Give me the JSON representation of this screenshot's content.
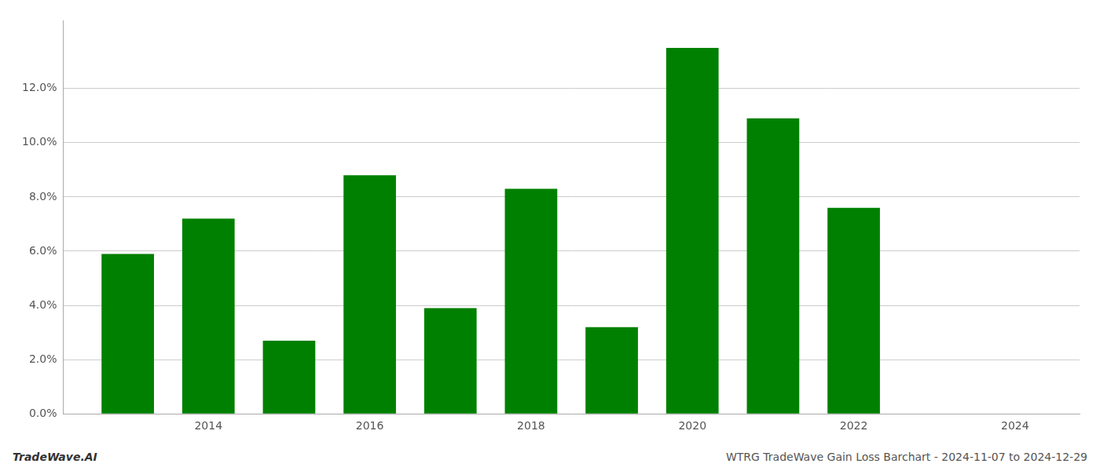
{
  "chart_data": {
    "type": "bar",
    "x": [
      2013,
      2014,
      2015,
      2016,
      2017,
      2018,
      2019,
      2020,
      2021,
      2022,
      2023
    ],
    "values": [
      0.059,
      0.072,
      0.027,
      0.088,
      0.039,
      0.083,
      0.032,
      0.135,
      0.109,
      0.076,
      0.0
    ],
    "color": "#008000",
    "xlim": [
      2012.2,
      2024.8
    ],
    "xticks": [
      2014,
      2016,
      2018,
      2020,
      2022,
      2024
    ],
    "ylim": [
      0,
      0.145
    ],
    "yticks": [
      {
        "value": 0.0,
        "label": "0.0%"
      },
      {
        "value": 0.02,
        "label": "2.0%"
      },
      {
        "value": 0.04,
        "label": "4.0%"
      },
      {
        "value": 0.06,
        "label": "6.0%"
      },
      {
        "value": 0.08,
        "label": "8.0%"
      },
      {
        "value": 0.1,
        "label": "10.0%"
      },
      {
        "value": 0.12,
        "label": "12.0%"
      }
    ],
    "grid": true,
    "annotations": [
      "TradeWave.AI",
      "WTRG TradeWave Gain Loss Barchart - 2024-11-07 to 2024-12-29"
    ]
  }
}
